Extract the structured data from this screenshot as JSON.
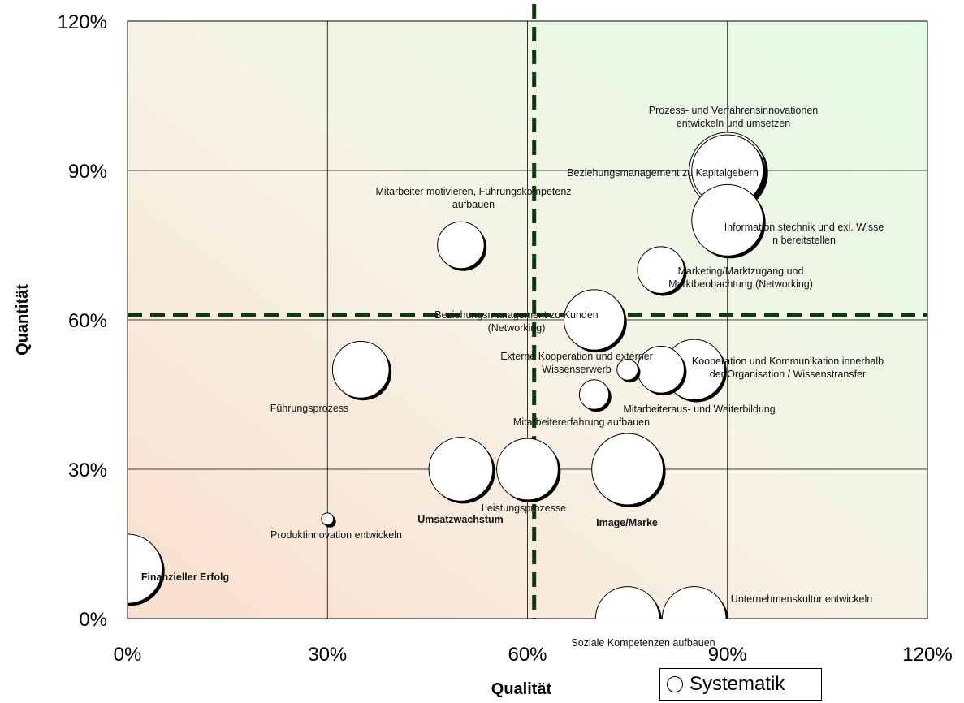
{
  "chart_data": {
    "type": "bubble",
    "xlabel": "Qualität",
    "ylabel": "Quantität",
    "xlim": [
      0,
      1.2
    ],
    "ylim": [
      0,
      1.2
    ],
    "x_ticks": [
      "0%",
      "30%",
      "60%",
      "90%",
      "120%"
    ],
    "y_ticks": [
      "0%",
      "30%",
      "60%",
      "90%",
      "120%"
    ],
    "grid": true,
    "background": "gradient: red-orange bottom-left to green top-right",
    "threshold_lines": {
      "x": 0.61,
      "y": 0.61,
      "style": "dashed",
      "color": "#0d3b0d"
    },
    "legend": {
      "position": "bottom-right",
      "entries": [
        "Systematik"
      ]
    },
    "series": [
      {
        "name": "Systematik",
        "points": [
          {
            "label": "Prozess- und Verfahrensinnovationen entwickeln und umsetzen",
            "x": 0.9,
            "y": 0.9,
            "size": 4
          },
          {
            "label": "Beziehungsmanagement zu Kapitalgebern",
            "x": 0.9,
            "y": 0.9,
            "size": 3.5
          },
          {
            "label": "Information stechnik und exl. Wissen bereitstellen",
            "x": 0.9,
            "y": 0.8,
            "size": 3.5
          },
          {
            "label": "Mitarbeiter motivieren, Führungskompetenz aufbauen",
            "x": 0.5,
            "y": 0.75,
            "size": 1.5
          },
          {
            "label": "Marketing/Marktzugang und Marktbeobachtung (Networking)",
            "x": 0.8,
            "y": 0.7,
            "size": 1.5
          },
          {
            "label": "Beziehungsmanagement zu Kunden (Networking)",
            "x": 0.7,
            "y": 0.6,
            "size": 2.5
          },
          {
            "label": "Externe Kooperation und externer Wissenserwerb",
            "x": 0.75,
            "y": 0.5,
            "size": 0.3
          },
          {
            "label": "Kooperation und Kommunikation innerhalb der Organisation / Wissenstransfer",
            "x": 0.85,
            "y": 0.5,
            "size": 2.5
          },
          {
            "label": "Mitarbeiteraus- und Weiterbildung",
            "x": 0.8,
            "y": 0.5,
            "size": 1.5
          },
          {
            "label": "Führungsprozess",
            "x": 0.35,
            "y": 0.5,
            "size": 2.2
          },
          {
            "label": "Mitarbeitererfahrung aufbauen",
            "x": 0.7,
            "y": 0.45,
            "size": 0.6
          },
          {
            "label": "Umsatzwachstum",
            "x": 0.5,
            "y": 0.3,
            "size": 2.8,
            "bold": true
          },
          {
            "label": "Leistungsprozesse",
            "x": 0.6,
            "y": 0.3,
            "size": 2.6
          },
          {
            "label": "Image/Marke",
            "x": 0.75,
            "y": 0.3,
            "size": 3.5,
            "bold": true
          },
          {
            "label": "Produktinnovation entwickeln",
            "x": 0.3,
            "y": 0.2,
            "size": 0.1
          },
          {
            "label": "Finanzieller Erfolg",
            "x": 0.0,
            "y": 0.1,
            "size": 3.3,
            "bold": true
          },
          {
            "label": "Unternehmenskultur entwickeln",
            "x": 0.85,
            "y": 0.0,
            "size": 2.8
          },
          {
            "label": "Soziale Kompetenzen aufbauen",
            "x": 0.75,
            "y": 0.0,
            "size": 2.8
          }
        ]
      }
    ]
  }
}
